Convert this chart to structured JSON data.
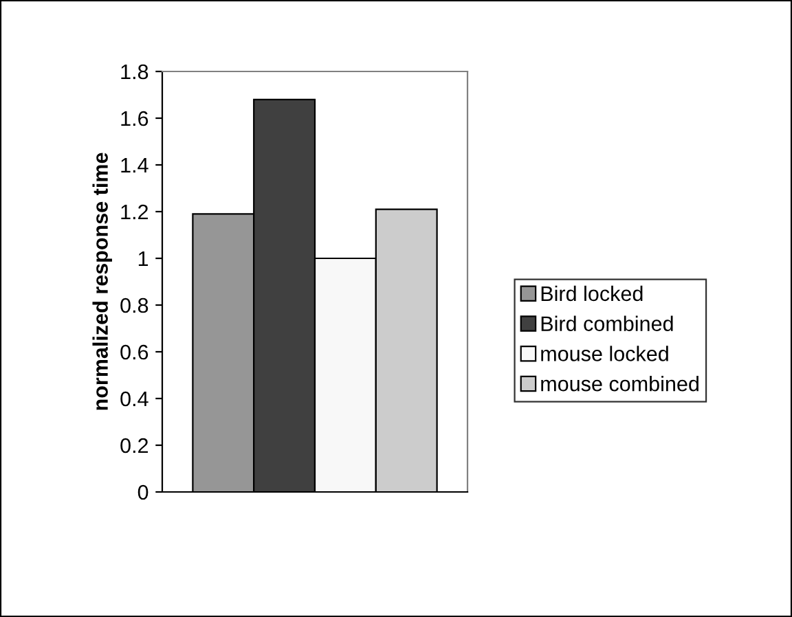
{
  "chart_data": {
    "type": "bar",
    "ylabel": "normalized response time",
    "categories": [
      null
    ],
    "series": [
      {
        "name": "Bird locked",
        "color": "#969696",
        "values": [
          1.19
        ]
      },
      {
        "name": "Bird combined",
        "color": "#404040",
        "values": [
          1.68
        ]
      },
      {
        "name": "mouse locked",
        "color": "#f8f8f8",
        "values": [
          1.0
        ]
      },
      {
        "name": "mouse combined",
        "color": "#cccccc",
        "values": [
          1.21
        ]
      }
    ],
    "ylim": [
      0,
      1.8
    ],
    "yticks": [
      0,
      0.2,
      0.4,
      0.6,
      0.8,
      1,
      1.2,
      1.4,
      1.6,
      1.8
    ],
    "grid": false,
    "legend": "right",
    "tick_labels": "y"
  }
}
